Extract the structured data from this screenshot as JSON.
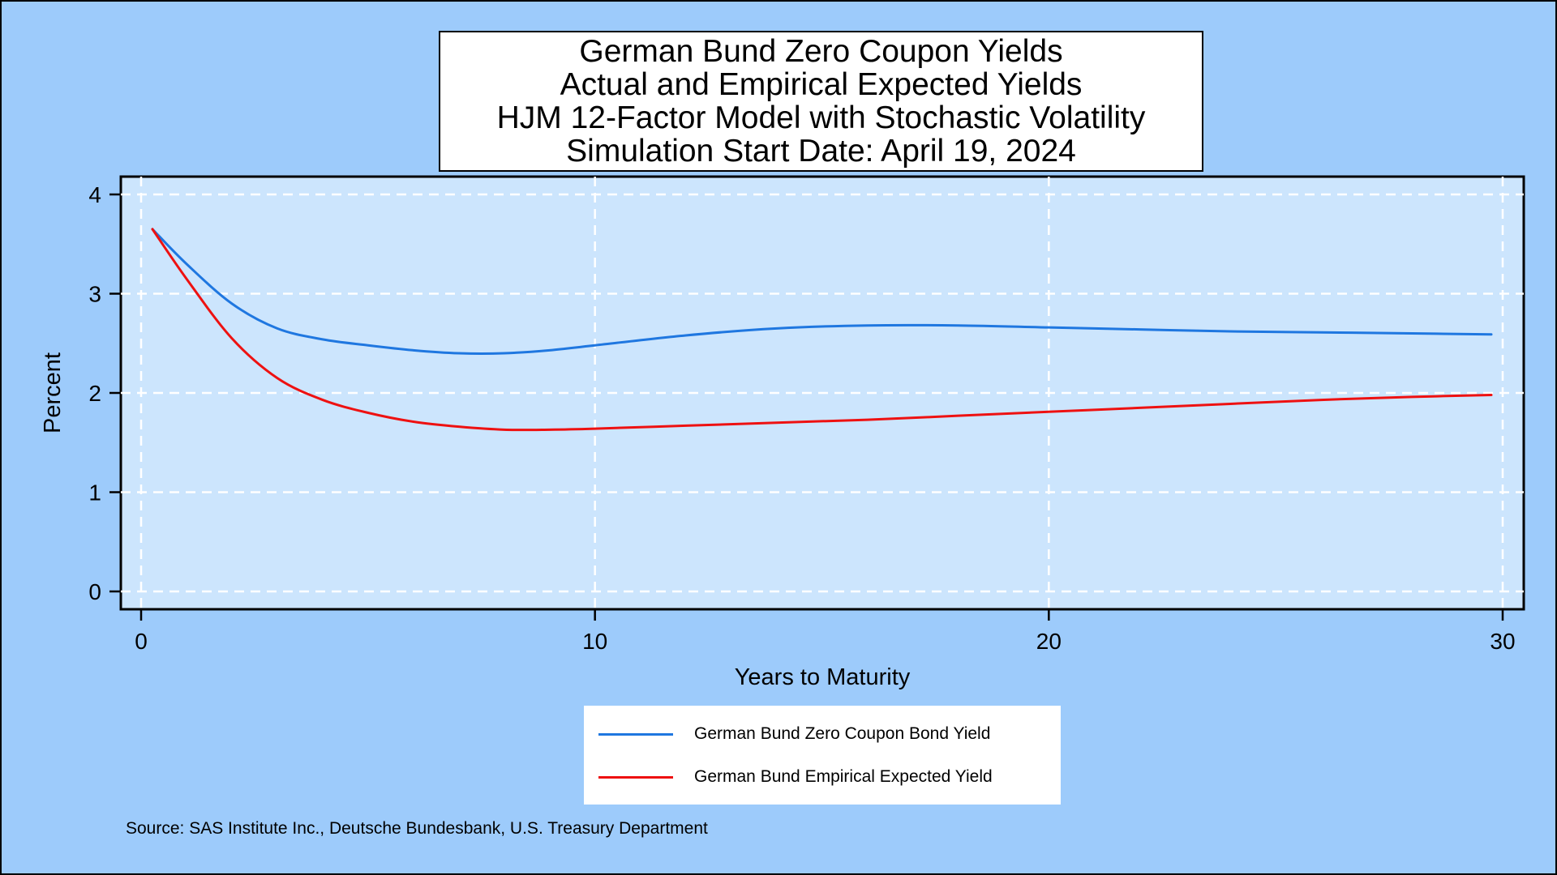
{
  "chart_data": {
    "type": "line",
    "title_lines": [
      "German Bund Zero Coupon Yields",
      "Actual and Empirical Expected Yields",
      "HJM 12-Factor Model with Stochastic Volatility",
      "Simulation Start Date: April 19, 2024"
    ],
    "xlabel": "Years to Maturity",
    "ylabel": "Percent",
    "xlim": [
      0,
      30
    ],
    "ylim": [
      0,
      4
    ],
    "xticks": [
      "0",
      "10",
      "20",
      "30"
    ],
    "yticks": [
      "0",
      "1",
      "2",
      "3",
      "4"
    ],
    "grid": "dashed",
    "legend_position": "bottom",
    "series": [
      {
        "name": "German Bund Zero Coupon Bond Yield",
        "color": "#1f77e0",
        "x": [
          0.25,
          1,
          2,
          3,
          4,
          5,
          6,
          7,
          8,
          9,
          10,
          12,
          14,
          16,
          18,
          20,
          22,
          24,
          26,
          28,
          29.75
        ],
        "y": [
          3.65,
          3.3,
          2.9,
          2.65,
          2.54,
          2.48,
          2.43,
          2.4,
          2.4,
          2.43,
          2.48,
          2.58,
          2.65,
          2.68,
          2.68,
          2.66,
          2.64,
          2.62,
          2.61,
          2.6,
          2.59
        ]
      },
      {
        "name": "German Bund Empirical Expected Yield",
        "color": "#ee1111",
        "x": [
          0.25,
          1,
          2,
          3,
          4,
          5,
          6,
          7,
          8,
          9,
          10,
          12,
          14,
          16,
          18,
          20,
          22,
          24,
          26,
          28,
          29.75
        ],
        "y": [
          3.65,
          3.15,
          2.55,
          2.15,
          1.93,
          1.8,
          1.71,
          1.66,
          1.63,
          1.63,
          1.64,
          1.67,
          1.7,
          1.73,
          1.77,
          1.81,
          1.85,
          1.89,
          1.93,
          1.96,
          1.98
        ]
      }
    ],
    "source": "Source: SAS Institute Inc., Deutsche Bundesbank, U.S. Treasury Department"
  }
}
